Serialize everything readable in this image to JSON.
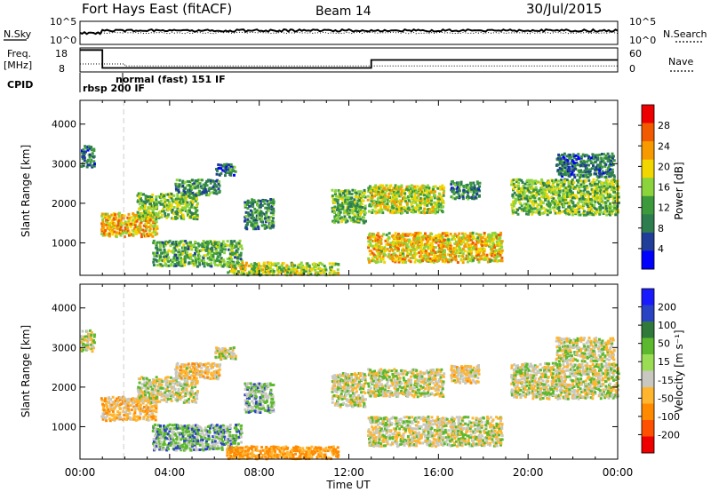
{
  "header": {
    "title": "Fort Hays East (fitACF)",
    "beam": "Beam 14",
    "date": "30/Jul/2015"
  },
  "colors": {
    "power_scale": [
      "#0000ff",
      "#1f3d99",
      "#2e7d4f",
      "#3c9a3c",
      "#8cd43c",
      "#f2d600",
      "#f79a00",
      "#f25a00",
      "#ee0000"
    ],
    "velocity_scale": [
      "#1a1aff",
      "#2a43c4",
      "#2f7a3b",
      "#5cb82c",
      "#9add55",
      "#c8c8c0",
      "#ffb52e",
      "#ff8a00",
      "#ff5000",
      "#ee0000"
    ]
  },
  "chart_data": [
    {
      "type": "line",
      "panel": "noise",
      "left_label": "N.Sky",
      "right_label": "N.Search",
      "left_ticks": [
        "10^5",
        "10^0"
      ],
      "right_ticks": [
        "10^5",
        "10^0"
      ],
      "x": [
        0,
        24
      ],
      "series": [
        {
          "name": "N.Sky",
          "values": [
            3.0,
            3.0
          ]
        },
        {
          "name": "N.Search",
          "values": [
            2.5,
            2.5
          ]
        }
      ]
    },
    {
      "type": "line",
      "panel": "frequency",
      "left_label": "Freq.",
      "left_unit": "[MHz]",
      "left_ticks": [
        18,
        8
      ],
      "right_label": "Nave",
      "right_ticks": [
        60,
        0
      ],
      "series": [
        {
          "name": "Freq.",
          "steps": [
            [
              0,
              1,
              18
            ],
            [
              1,
              13,
              9
            ],
            [
              13,
              24,
              13
            ]
          ]
        },
        {
          "name": "Nave",
          "steps": [
            [
              0,
              2,
              20
            ],
            [
              2,
              24,
              15
            ]
          ]
        }
      ]
    },
    {
      "type": "table",
      "panel": "cpid",
      "label": "CPID",
      "entries": [
        {
          "start_hour": 0.0,
          "text": "rbsp 200 IF"
        },
        {
          "start_hour": 1.9,
          "text": "normal (fast) 151 IF"
        }
      ]
    },
    {
      "type": "heatmap",
      "panel": "power",
      "ylabel": "Slant Range [km]",
      "yticks": [
        1000,
        2000,
        3000,
        4000
      ],
      "ylim": [
        180,
        4600
      ],
      "xlim": [
        0,
        24
      ],
      "colorbar": {
        "label": "Power [dB]",
        "ticks": [
          4,
          8,
          12,
          16,
          20,
          24,
          28
        ],
        "range": [
          0,
          30
        ]
      },
      "regions": [
        {
          "t": [
            0.0,
            0.6
          ],
          "r": [
            2900,
            3450
          ],
          "v": 8
        },
        {
          "t": [
            0.9,
            3.4
          ],
          "r": [
            1150,
            1750
          ],
          "v": 20
        },
        {
          "t": [
            2.5,
            5.2
          ],
          "r": [
            1600,
            2250
          ],
          "v": 14
        },
        {
          "t": [
            4.2,
            6.2
          ],
          "r": [
            2200,
            2600
          ],
          "v": 10
        },
        {
          "t": [
            6.0,
            6.9
          ],
          "r": [
            2700,
            3000
          ],
          "v": 8
        },
        {
          "t": [
            3.2,
            7.2
          ],
          "r": [
            400,
            1050
          ],
          "v": 12
        },
        {
          "t": [
            7.3,
            8.6
          ],
          "r": [
            1350,
            2100
          ],
          "v": 10
        },
        {
          "t": [
            6.5,
            11.5
          ],
          "r": [
            180,
            500
          ],
          "v": 16
        },
        {
          "t": [
            11.2,
            12.7
          ],
          "r": [
            1500,
            2350
          ],
          "v": 13
        },
        {
          "t": [
            12.8,
            16.2
          ],
          "r": [
            1750,
            2450
          ],
          "v": 16
        },
        {
          "t": [
            12.8,
            18.8
          ],
          "r": [
            500,
            1250
          ],
          "v": 19
        },
        {
          "t": [
            16.5,
            17.8
          ],
          "r": [
            2100,
            2550
          ],
          "v": 9
        },
        {
          "t": [
            19.2,
            24.0
          ],
          "r": [
            1700,
            2600
          ],
          "v": 14
        },
        {
          "t": [
            21.2,
            23.8
          ],
          "r": [
            2650,
            3250
          ],
          "v": 8
        }
      ]
    },
    {
      "type": "heatmap",
      "panel": "velocity",
      "ylabel": "Slant Range [km]",
      "yticks": [
        1000,
        2000,
        3000,
        4000
      ],
      "ylim": [
        180,
        4600
      ],
      "xlim": [
        0,
        24
      ],
      "xticks": [
        "00:00",
        "04:00",
        "08:00",
        "12:00",
        "16:00",
        "20:00",
        "00:00"
      ],
      "xlabel": "Time UT",
      "colorbar": {
        "label": "Velocity [m s⁻¹]",
        "ticks": [
          200,
          100,
          50,
          15,
          -15,
          -50,
          -100,
          -200
        ]
      },
      "regions": [
        {
          "t": [
            0.0,
            0.6
          ],
          "r": [
            2900,
            3450
          ],
          "v": 0
        },
        {
          "t": [
            0.9,
            3.4
          ],
          "r": [
            1150,
            1750
          ],
          "v": -40
        },
        {
          "t": [
            2.5,
            5.2
          ],
          "r": [
            1600,
            2250
          ],
          "v": 0
        },
        {
          "t": [
            4.2,
            6.2
          ],
          "r": [
            2200,
            2600
          ],
          "v": -20
        },
        {
          "t": [
            6.0,
            6.9
          ],
          "r": [
            2700,
            3000
          ],
          "v": 0
        },
        {
          "t": [
            3.2,
            7.2
          ],
          "r": [
            400,
            1050
          ],
          "v": 30
        },
        {
          "t": [
            7.3,
            8.6
          ],
          "r": [
            1350,
            2100
          ],
          "v": 25
        },
        {
          "t": [
            6.5,
            11.5
          ],
          "r": [
            180,
            500
          ],
          "v": -60
        },
        {
          "t": [
            11.2,
            12.7
          ],
          "r": [
            1500,
            2350
          ],
          "v": 0
        },
        {
          "t": [
            12.8,
            16.2
          ],
          "r": [
            1750,
            2450
          ],
          "v": 0
        },
        {
          "t": [
            12.8,
            18.8
          ],
          "r": [
            500,
            1250
          ],
          "v": 0
        },
        {
          "t": [
            16.5,
            17.8
          ],
          "r": [
            2100,
            2550
          ],
          "v": -20
        },
        {
          "t": [
            19.2,
            24.0
          ],
          "r": [
            1700,
            2600
          ],
          "v": 0
        },
        {
          "t": [
            21.2,
            23.8
          ],
          "r": [
            2650,
            3250
          ],
          "v": 0
        }
      ]
    }
  ]
}
